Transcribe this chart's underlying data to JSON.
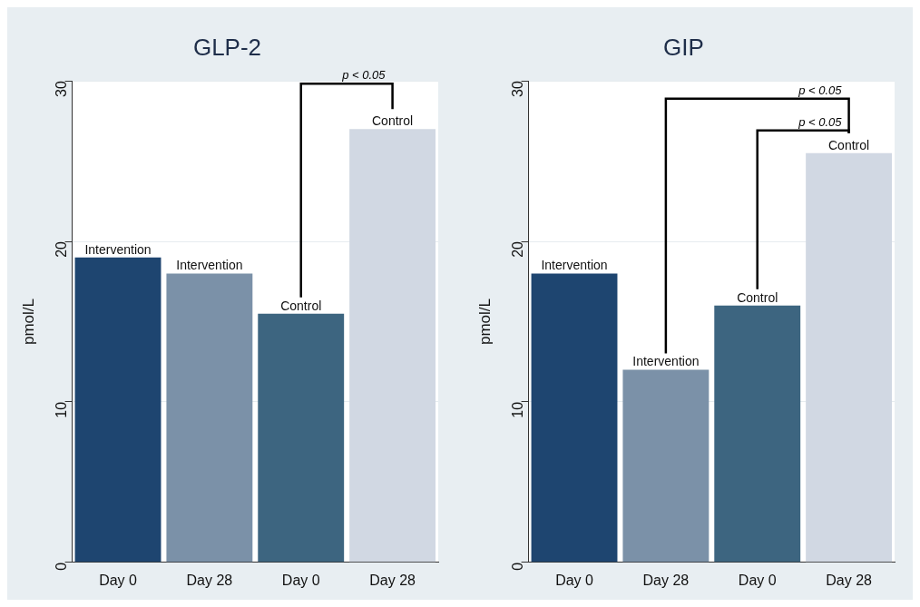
{
  "chart_data": [
    {
      "type": "bar",
      "title": "GLP-2",
      "ylabel": "pmol/L",
      "categories": [
        "Day 0",
        "Day 28",
        "Day 0",
        "Day 28"
      ],
      "series": [
        {
          "name": "Intervention",
          "colors": [
            "#1e4570",
            "#7b91a8",
            null,
            null
          ],
          "values": [
            19,
            18,
            null,
            null
          ]
        },
        {
          "name": "Control",
          "colors": [
            null,
            null,
            "#3d6580",
            "#d1d8e3"
          ],
          "values": [
            null,
            null,
            15.5,
            27
          ]
        }
      ],
      "ylim": [
        0,
        30
      ],
      "yticks": [
        0,
        10,
        20,
        30
      ],
      "grid": "y",
      "legend": false,
      "annotations": [
        "p < 0.05"
      ]
    },
    {
      "type": "bar",
      "title": "GIP",
      "ylabel": "pmol/L",
      "categories": [
        "Day 0",
        "Day 28",
        "Day 0",
        "Day 28"
      ],
      "series": [
        {
          "name": "Intervention",
          "colors": [
            "#1e4570",
            "#7b91a8",
            null,
            null
          ],
          "values": [
            18,
            12,
            null,
            null
          ]
        },
        {
          "name": "Control",
          "colors": [
            null,
            null,
            "#3d6580",
            "#d1d8e3"
          ],
          "values": [
            null,
            null,
            16,
            25.5
          ]
        }
      ],
      "ylim": [
        0,
        30
      ],
      "yticks": [
        0,
        10,
        20,
        30
      ],
      "grid": "y",
      "legend": false,
      "annotations": [
        "p < 0.05",
        "p < 0.05"
      ]
    }
  ]
}
